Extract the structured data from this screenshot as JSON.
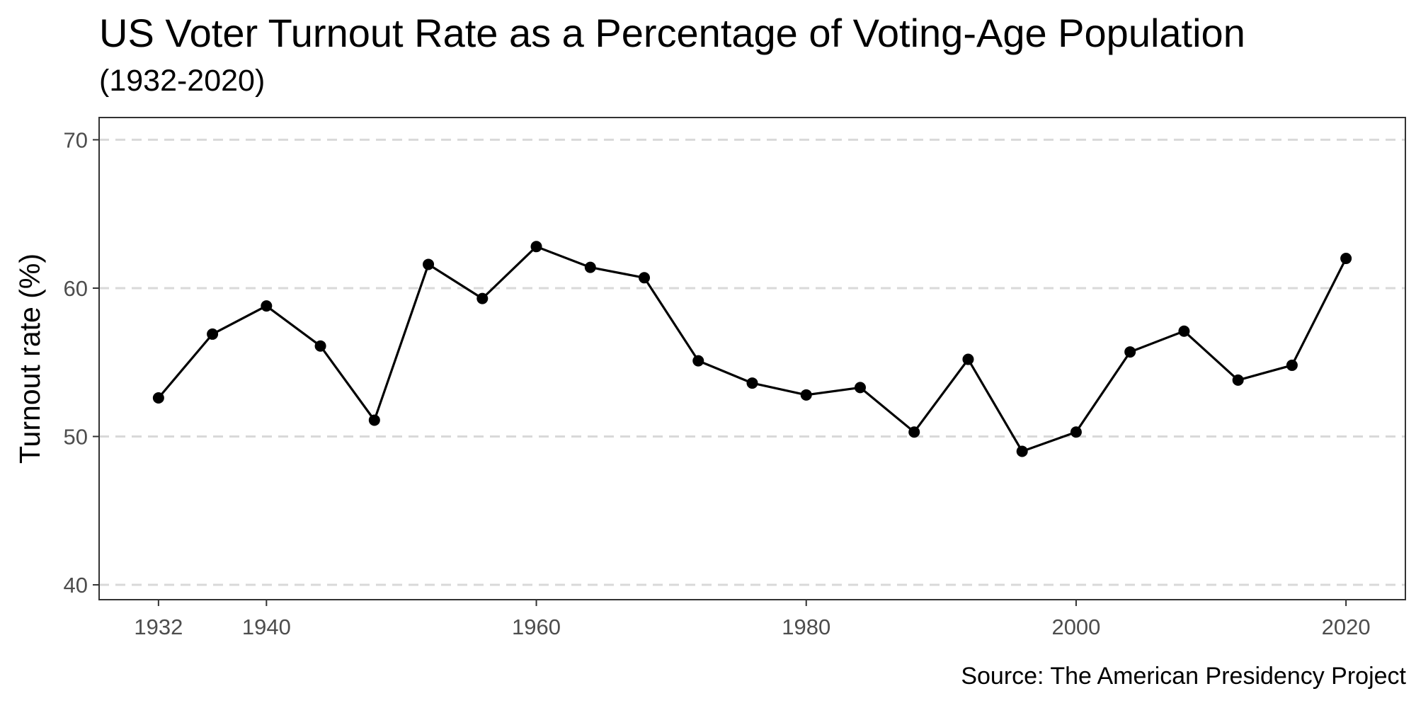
{
  "chart_data": {
    "type": "line",
    "title": "US Voter Turnout Rate as a Percentage of Voting-Age Population",
    "subtitle": "(1932-2020)",
    "caption": "Source: The American Presidency Project",
    "xlabel": "",
    "ylabel": "Turnout rate (%)",
    "x": [
      1932,
      1936,
      1940,
      1944,
      1948,
      1952,
      1956,
      1960,
      1964,
      1968,
      1972,
      1976,
      1980,
      1984,
      1988,
      1992,
      1996,
      2000,
      2004,
      2008,
      2012,
      2016,
      2020
    ],
    "series": [
      {
        "values": [
          52.6,
          56.9,
          58.8,
          56.1,
          51.1,
          61.6,
          59.3,
          62.8,
          61.4,
          60.7,
          55.1,
          53.6,
          52.8,
          53.3,
          50.3,
          55.2,
          49.0,
          50.3,
          55.7,
          57.1,
          53.8,
          54.8,
          62.0
        ],
        "color": "#000000"
      }
    ],
    "x_ticks": [
      1932,
      1940,
      1960,
      1980,
      2000,
      2020
    ],
    "y_ticks": [
      40,
      50,
      60,
      70
    ],
    "xlim": [
      1927.6,
      2024.4
    ],
    "ylim": [
      39.0,
      71.5
    ],
    "grid": "horizontal-dashed",
    "legend": "none"
  }
}
